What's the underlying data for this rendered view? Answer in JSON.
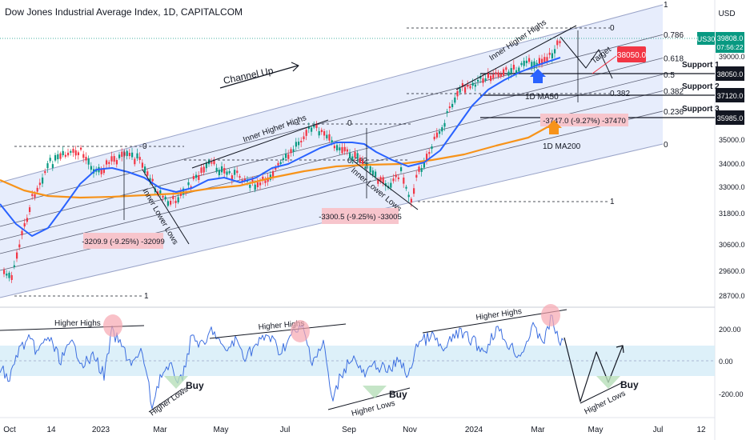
{
  "header": {
    "title": "Dow Jones Industrial Average Index, 1D, CAPITALCOM",
    "currency": "USD"
  },
  "colors": {
    "channel_fill": "#dfe7fb",
    "ma50": "#2962ff",
    "ma200": "#f7931a",
    "price": "#089981",
    "rsi": "#3d6fe0",
    "rsi_band": "#d4ecf8",
    "target_label": "#f23645"
  },
  "chart_data": [
    {
      "type": "candlestick",
      "name": "price-panel",
      "y_ticks": [
        "39000.0",
        "38050.0",
        "37120.0",
        "35985.0",
        "35000.0",
        "34000.0",
        "33000.0",
        "31800.0",
        "30600.0",
        "29600.0",
        "28700.0"
      ],
      "x_ticks": [
        "Oct",
        "14",
        "2023",
        "Mar",
        "May",
        "Jul",
        "Sep",
        "Nov",
        "2024",
        "Mar",
        "May",
        "Jul",
        "12"
      ],
      "current_price": {
        "symbol": "US30",
        "value": "39808.0",
        "countdown": "07:56:22"
      },
      "price_labels": [
        {
          "value": "38050.0",
          "label": "Support 1"
        },
        {
          "value": "37120.0",
          "label": "Support 2"
        },
        {
          "value": "35985.0",
          "label": "Support 3"
        }
      ],
      "fib_levels": [
        "1",
        "0.786",
        "0.618",
        "0.5",
        "0.382",
        "0.236",
        "0"
      ],
      "annotations": {
        "channel": "Channel Up",
        "inner_higher_highs": "Inner Higher Highs",
        "inner_lower_lows": "Inner Lower Lows",
        "target": "Target",
        "target_value": "38050.0",
        "ma50": "1D MA50",
        "ma200": "1D MA200",
        "drop_1": "-3209.9 (-9.25%) -32099",
        "drop_2": "-3300.5 (-9.25%) -33005",
        "drop_3": "-3747.0 (-9.27%) -37470",
        "fib_zero": "0",
        "fib_one": "1",
        "fib_382": "0.382"
      }
    },
    {
      "type": "line",
      "name": "rsi-panel",
      "y_ticks": [
        "200.00",
        "0.00",
        "-200.00"
      ],
      "annotations": {
        "higher_highs": "Higher Highs",
        "higher_lows": "Higher Lows",
        "buy": "Buy"
      }
    }
  ]
}
